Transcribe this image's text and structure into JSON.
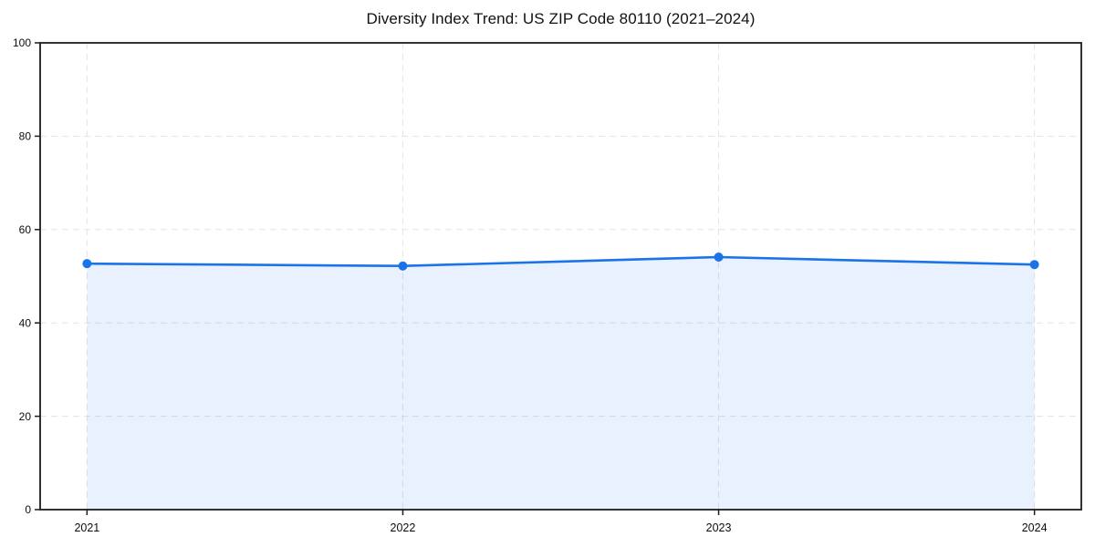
{
  "page": {
    "background": "#ffffff"
  },
  "chart_data": {
    "type": "area",
    "title": "Diversity Index Trend: US ZIP Code 80110 (2021–2024)",
    "x": [
      "2021",
      "2022",
      "2023",
      "2024"
    ],
    "values": [
      52.7,
      52.2,
      54.1,
      52.5
    ],
    "xlabel": "",
    "ylabel": "",
    "ylim": [
      0,
      100
    ],
    "yticks": [
      0,
      20,
      40,
      60,
      80,
      100
    ],
    "grid": "dashed-both-axes",
    "legend": "none",
    "marker": "circle",
    "x_margin_frac": 0.045,
    "colors": {
      "line": "#1a73e8",
      "marker": "#1a73e8",
      "fill": "rgba(26,115,232,0.10)",
      "grid": "#e4e4e4",
      "spine": "#1c1c1c",
      "tick_label": "#0d0d0d",
      "title": "#111111",
      "background": "#ffffff"
    }
  }
}
